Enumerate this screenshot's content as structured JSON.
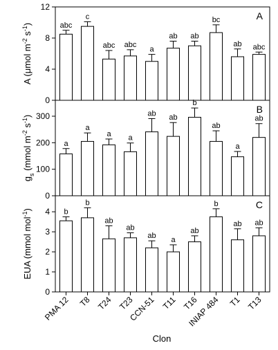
{
  "chart_data": {
    "type": "bar",
    "categories": [
      "PMA 12",
      "T8",
      "T24",
      "T23",
      "CCN-51",
      "T11",
      "T16",
      "INIAP 484",
      "T1",
      "T13"
    ],
    "xlabel": "Clon",
    "panels": [
      {
        "panel_label": "A",
        "ylabel": {
          "main": "A (μmol m",
          "sup1": "-2",
          "mid": " s",
          "sup2": "-1",
          "end": ")"
        },
        "ylim": [
          0,
          12
        ],
        "yticks": [
          0,
          4,
          8,
          12
        ],
        "values": [
          8.5,
          9.5,
          5.3,
          5.7,
          5.0,
          6.7,
          7.0,
          8.7,
          5.6,
          5.9
        ],
        "errors": [
          0.5,
          0.6,
          1.1,
          0.8,
          0.9,
          0.9,
          0.6,
          1.0,
          1.0,
          0.3
        ],
        "letters": [
          "abc",
          "c",
          "abc",
          "abc",
          "a",
          "ab",
          "ab",
          "bc",
          "ab",
          "abc"
        ]
      },
      {
        "panel_label": "B",
        "ylabel": {
          "main": "g",
          "sub": "s",
          "mid": " (mmol m",
          "sup1": "-2",
          "mid2": " s",
          "sup2": "-1",
          "end": ")"
        },
        "ylim": [
          0,
          360
        ],
        "yticks": [
          0,
          100,
          200,
          300
        ],
        "values": [
          158,
          205,
          192,
          166,
          241,
          224,
          296,
          205,
          147,
          220
        ],
        "errors": [
          20,
          32,
          22,
          33,
          50,
          52,
          35,
          40,
          20,
          52
        ],
        "letters": [
          "a",
          "a",
          "a",
          "a",
          "ab",
          "ab",
          "b",
          "ab",
          "a",
          "ab"
        ]
      },
      {
        "panel_label": "C",
        "ylabel": {
          "main": "EUA (mmol mol",
          "sup1": "-1",
          "end": ")"
        },
        "ylim": [
          0,
          4.8
        ],
        "yticks": [
          0,
          1,
          2,
          3,
          4
        ],
        "values": [
          3.55,
          3.7,
          2.65,
          2.7,
          2.2,
          2.0,
          2.5,
          3.75,
          2.6,
          2.8
        ],
        "errors": [
          0.2,
          0.5,
          0.65,
          0.25,
          0.35,
          0.35,
          0.3,
          0.4,
          0.55,
          0.4
        ],
        "letters": [
          "b",
          "b",
          "ab",
          "ab",
          "ab",
          "a",
          "ab",
          "b",
          "ab",
          "ab"
        ]
      }
    ]
  }
}
